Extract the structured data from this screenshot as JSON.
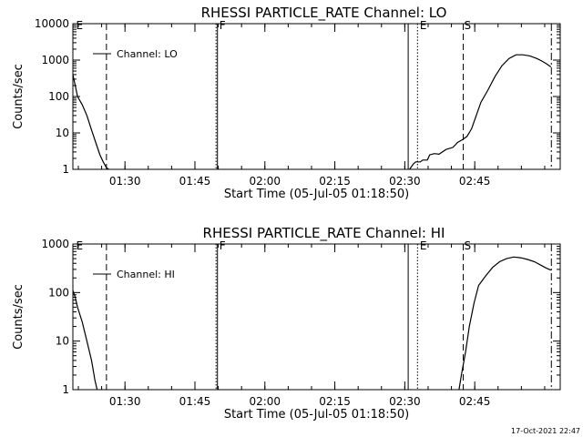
{
  "chart_data": [
    {
      "type": "line",
      "title": "RHESSI PARTICLE_RATE Channel: LO",
      "xlabel": "Start Time (05-Jul-05 01:18:50)",
      "ylabel": "Counts/sec",
      "yscale": "log",
      "ylim": [
        1,
        10000
      ],
      "xlim_min": [
        0,
        104.5
      ],
      "y_tick_labels": [
        "1",
        "10",
        "100",
        "1000",
        "10000"
      ],
      "y_tick_values": [
        1,
        10,
        100,
        1000,
        10000
      ],
      "x_tick_labels": [
        "01:30",
        "01:45",
        "02:00",
        "02:15",
        "02:30",
        "02:45"
      ],
      "x_tick_values": [
        11.17,
        26.17,
        41.17,
        56.17,
        71.17,
        86.17
      ],
      "legend": {
        "label": "Channel: LO",
        "placement": "top-left"
      },
      "series": [
        {
          "name": "Channel: LO",
          "segments": [
            {
              "x": [
                0,
                0.5,
                1,
                2,
                3,
                4,
                5,
                5.8,
                6.5,
                7.2,
                7.7
              ],
              "y": [
                400,
                200,
                100,
                60,
                30,
                12,
                5,
                2.5,
                1.6,
                1.1,
                1
              ]
            },
            {
              "x": [
                72.2,
                73,
                73.5,
                74.5,
                75,
                76,
                76.5,
                77.5,
                78.5,
                80,
                81.5,
                82.5,
                83.5,
                84.5,
                85.5,
                86.5,
                87.5,
                89,
                90.5,
                92,
                93.5,
                95,
                96.5,
                98,
                99.5,
                100.5,
                101.5,
                102.5
              ],
              "y": [
                1,
                1.4,
                1.6,
                1.6,
                1.8,
                1.8,
                2.5,
                2.7,
                2.6,
                3.5,
                4,
                5.5,
                6.5,
                8,
                13,
                30,
                70,
                150,
                350,
                700,
                1100,
                1400,
                1400,
                1300,
                1100,
                950,
                800,
                650
              ]
            }
          ]
        }
      ],
      "flags": [
        {
          "letter": "E",
          "x": 0.5,
          "style": "solid",
          "line_x": 0
        },
        {
          "letter": "",
          "x": 7.2,
          "style": "dashed",
          "line_x": 7.2
        },
        {
          "letter": "F",
          "x": 31.2,
          "style": "dotted",
          "line_x": 30.7
        },
        {
          "letter": "",
          "x": 31.0,
          "style": "solid",
          "line_x": 31.0
        },
        {
          "letter": "",
          "x": 71.9,
          "style": "solid",
          "line_x": 71.9
        },
        {
          "letter": "E",
          "x": 74.2,
          "style": "dotted",
          "line_x": 73.9
        },
        {
          "letter": "S",
          "x": 83.7,
          "style": "dashed",
          "line_x": 83.7
        },
        {
          "letter": "",
          "x": 102.6,
          "style": "dashdot",
          "line_x": 102.6
        }
      ]
    },
    {
      "type": "line",
      "title": "RHESSI PARTICLE_RATE Channel: HI",
      "xlabel": "Start Time (05-Jul-05 01:18:50)",
      "ylabel": "Counts/sec",
      "yscale": "log",
      "ylim": [
        1,
        1000
      ],
      "xlim_min": [
        0,
        104.5
      ],
      "y_tick_labels": [
        "1",
        "10",
        "100",
        "1000"
      ],
      "y_tick_values": [
        1,
        10,
        100,
        1000
      ],
      "x_tick_labels": [
        "01:30",
        "01:45",
        "02:00",
        "02:15",
        "02:30",
        "02:45"
      ],
      "x_tick_values": [
        11.17,
        26.17,
        41.17,
        56.17,
        71.17,
        86.17
      ],
      "legend": {
        "label": "Channel: HI",
        "placement": "top-left"
      },
      "series": [
        {
          "name": "Channel: HI",
          "segments": [
            {
              "x": [
                0,
                0.5,
                1,
                2,
                3,
                4,
                4.7,
                5.2
              ],
              "y": [
                110,
                80,
                50,
                25,
                10,
                4,
                1.6,
                1
              ]
            },
            {
              "x": [
                82.8,
                83.3,
                84.2,
                85,
                86,
                87,
                88.5,
                90,
                91.5,
                93,
                94.5,
                96,
                97.5,
                99,
                100.5,
                101.5,
                102.5
              ],
              "y": [
                1,
                2,
                6,
                20,
                60,
                140,
                220,
                330,
                430,
                500,
                540,
                520,
                480,
                430,
                360,
                320,
                290
              ]
            }
          ]
        }
      ],
      "flags": [
        {
          "letter": "E",
          "x": 0.5,
          "style": "solid",
          "line_x": 0
        },
        {
          "letter": "",
          "x": 7.2,
          "style": "dashed",
          "line_x": 7.2
        },
        {
          "letter": "F",
          "x": 31.2,
          "style": "dotted",
          "line_x": 30.7
        },
        {
          "letter": "",
          "x": 31.0,
          "style": "solid",
          "line_x": 31.0
        },
        {
          "letter": "",
          "x": 71.9,
          "style": "solid",
          "line_x": 71.9
        },
        {
          "letter": "E",
          "x": 74.2,
          "style": "dotted",
          "line_x": 73.9
        },
        {
          "letter": "S",
          "x": 83.7,
          "style": "dashed",
          "line_x": 83.7
        },
        {
          "letter": "",
          "x": 102.6,
          "style": "dashdot",
          "line_x": 102.6
        }
      ]
    }
  ],
  "footer": {
    "timestamp": "17-Oct-2021 22:47"
  }
}
